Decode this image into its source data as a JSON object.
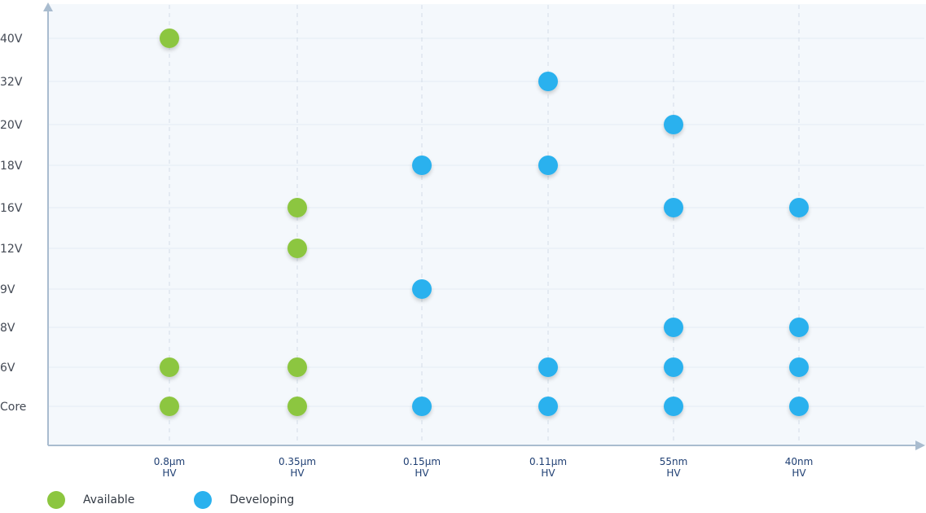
{
  "chart_data": {
    "type": "scatter",
    "title": "",
    "xlabel": "",
    "ylabel": "",
    "categories": [
      [
        "0.8µm",
        "HV"
      ],
      [
        "0.35µm",
        "HV"
      ],
      [
        "0.15µm",
        "HV"
      ],
      [
        "0.11µm",
        "HV"
      ],
      [
        "55nm",
        "HV"
      ],
      [
        "40nm",
        "HV"
      ]
    ],
    "y_categories": [
      "Core",
      "6V",
      "8V",
      "9V",
      "12V",
      "16V",
      "18V",
      "20V",
      "32V",
      "40V"
    ],
    "series": [
      {
        "name": "Available",
        "color": "#8cc63f",
        "points": [
          {
            "x": "0.8µm HV",
            "y": "40V"
          },
          {
            "x": "0.8µm HV",
            "y": "6V"
          },
          {
            "x": "0.8µm HV",
            "y": "Core"
          },
          {
            "x": "0.35µm HV",
            "y": "16V"
          },
          {
            "x": "0.35µm HV",
            "y": "12V"
          },
          {
            "x": "0.35µm HV",
            "y": "6V"
          },
          {
            "x": "0.35µm HV",
            "y": "Core"
          }
        ]
      },
      {
        "name": "Developing",
        "color": "#2ab1ee",
        "points": [
          {
            "x": "0.15µm HV",
            "y": "18V"
          },
          {
            "x": "0.15µm HV",
            "y": "9V"
          },
          {
            "x": "0.15µm HV",
            "y": "Core"
          },
          {
            "x": "0.11µm HV",
            "y": "32V"
          },
          {
            "x": "0.11µm HV",
            "y": "18V"
          },
          {
            "x": "0.11µm HV",
            "y": "6V"
          },
          {
            "x": "0.11µm HV",
            "y": "Core"
          },
          {
            "x": "55nm HV",
            "y": "20V"
          },
          {
            "x": "55nm HV",
            "y": "16V"
          },
          {
            "x": "55nm HV",
            "y": "8V"
          },
          {
            "x": "55nm HV",
            "y": "6V"
          },
          {
            "x": "55nm HV",
            "y": "Core"
          },
          {
            "x": "40nm HV",
            "y": "16V"
          },
          {
            "x": "40nm HV",
            "y": "8V"
          },
          {
            "x": "40nm HV",
            "y": "6V"
          },
          {
            "x": "40nm HV",
            "y": "Core"
          }
        ]
      }
    ],
    "grid": true,
    "legend_position": "bottom-left"
  }
}
